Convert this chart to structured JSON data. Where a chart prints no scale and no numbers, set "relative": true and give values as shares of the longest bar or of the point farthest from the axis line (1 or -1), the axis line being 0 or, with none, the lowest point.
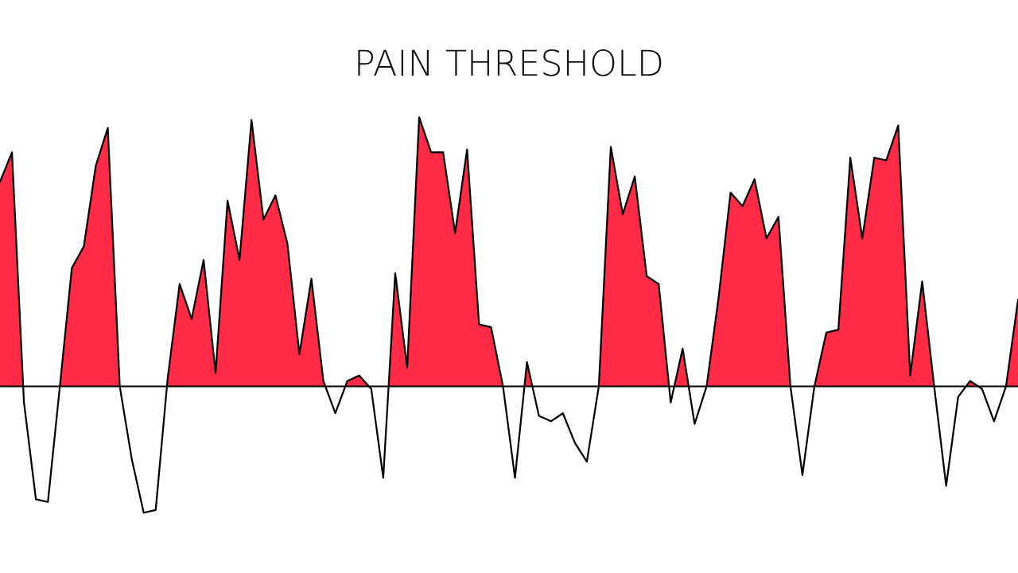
{
  "chart_data": {
    "type": "area",
    "title": "PAIN THRESHOLD",
    "relative": true,
    "grid": false,
    "legend": false,
    "categories": [
      null,
      null,
      null,
      null,
      null,
      null,
      null,
      null,
      null,
      null,
      null,
      null,
      null,
      null,
      null,
      null,
      null,
      null,
      null,
      null,
      null,
      null,
      null,
      null,
      null,
      null,
      null,
      null,
      null,
      null,
      null,
      null,
      null,
      null,
      null,
      null,
      null,
      null,
      null,
      null,
      null,
      null,
      null,
      null,
      null,
      null,
      null,
      null,
      null,
      null,
      null,
      null,
      null,
      null,
      null,
      null,
      null,
      null,
      null,
      null,
      null,
      null,
      null,
      null,
      null,
      null,
      null,
      null,
      null,
      null,
      null,
      null,
      null,
      null,
      null,
      null,
      null,
      null,
      null,
      null,
      null,
      null,
      null,
      null,
      null,
      null
    ],
    "series": [
      {
        "color": "#ff2a45",
        "values": [
          0.76,
          0.87,
          -0.06,
          -0.42,
          -0.43,
          0,
          0.44,
          0.52,
          0.82,
          0.96,
          0,
          -0.27,
          -0.47,
          -0.46,
          0.03,
          0.38,
          0.25,
          0.47,
          0.05,
          0.69,
          0.47,
          0.99,
          0.62,
          0.71,
          0.53,
          0.12,
          0.4,
          0.02,
          -0.1,
          0.02,
          0.04,
          -0.01,
          -0.34,
          0.42,
          0.07,
          1,
          0.87,
          0.87,
          0.57,
          0.88,
          0.23,
          0.22,
          0,
          -0.34,
          0.09,
          -0.11,
          -0.13,
          -0.1,
          -0.21,
          -0.28,
          0,
          0.89,
          0.64,
          0.78,
          0.41,
          0.38,
          -0.06,
          0.14,
          -0.14,
          0,
          0.33,
          0.72,
          0.67,
          0.77,
          0.55,
          0.63,
          0,
          -0.33,
          0,
          0.2,
          0.21,
          0.85,
          0.55,
          0.85,
          0.84,
          0.97,
          0.04,
          0.39,
          0,
          -0.37,
          -0.04,
          0.02,
          -0.01,
          -0.13,
          0,
          0.32
        ]
      }
    ]
  }
}
